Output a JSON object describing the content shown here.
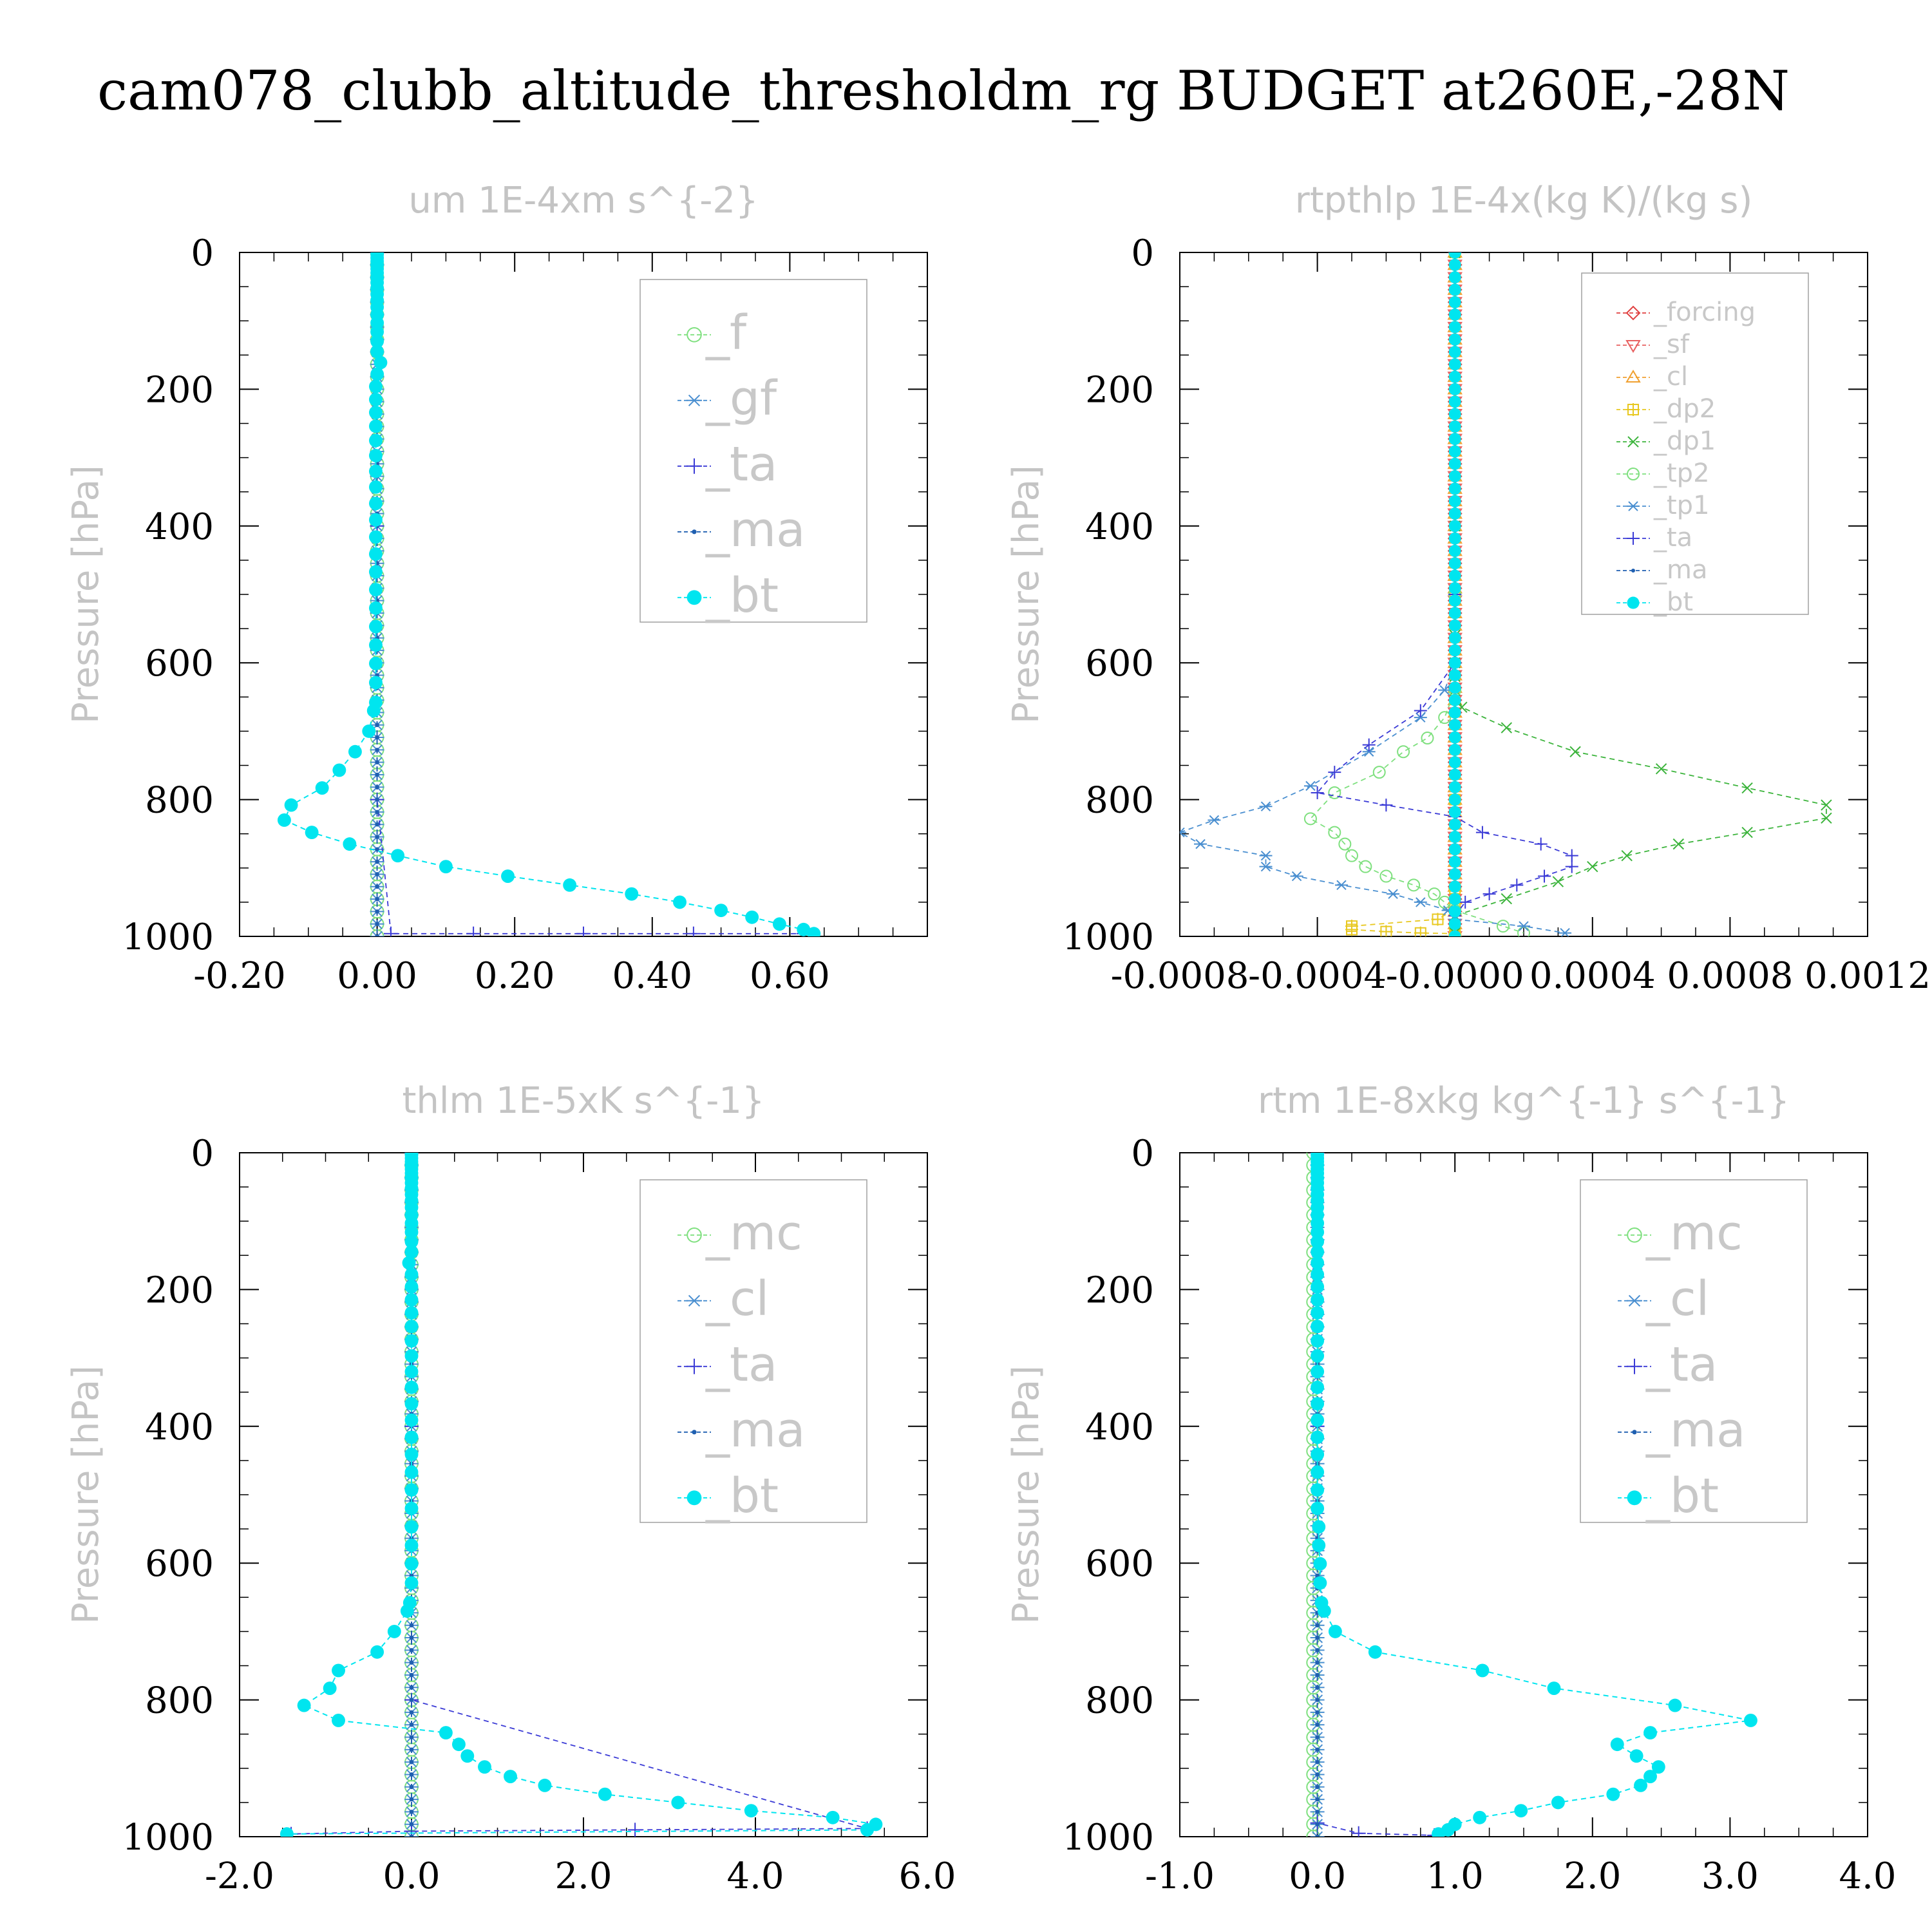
{
  "figure": {
    "title": "cam078_clubb_altitude_thresholdm_rg  BUDGET at260E,-28N"
  },
  "chart_data": [
    {
      "type": "line",
      "title": "um  1E-4xm s^{-2}",
      "ylabel": "Pressure [hPa]",
      "xlabel": "",
      "xlim": [
        -0.2,
        0.8
      ],
      "ylim": [
        1000,
        0
      ],
      "y_inverted": true,
      "xticks": [
        "-0.20",
        "0.00",
        "0.20",
        "0.40",
        "0.60"
      ],
      "xtick_values": [
        -0.2,
        0.0,
        0.2,
        0.4,
        0.6
      ],
      "yticks": [
        "0",
        "200",
        "400",
        "600",
        "800",
        "1000"
      ],
      "ytick_values": [
        0,
        200,
        400,
        600,
        800,
        1000
      ],
      "legend_position": "top-right",
      "legend_size": "large",
      "pressure_levels": [
        3,
        8,
        13,
        18,
        24,
        30,
        37,
        44,
        52,
        61,
        70,
        80,
        91,
        103,
        116,
        130,
        145,
        161,
        178,
        196,
        215,
        234,
        254,
        275,
        297,
        320,
        343,
        367,
        391,
        416,
        441,
        467,
        493,
        520,
        547,
        574,
        601,
        629,
        658,
        670,
        700,
        730,
        757,
        783,
        808,
        830,
        848,
        865,
        882,
        898,
        912,
        925,
        938,
        950,
        962,
        972,
        982,
        990,
        996
      ],
      "series": [
        {
          "name": "_f",
          "color": "#7fe07f",
          "marker": "circle-open",
          "values": {
            "kind": "constant",
            "value": 0.0
          }
        },
        {
          "name": "_gf",
          "color": "#4a8fd0",
          "marker": "asterisk",
          "values": {
            "kind": "constant",
            "value": 0.0
          }
        },
        {
          "name": "_ta",
          "color": "#3b3bd6",
          "marker": "plus",
          "values": {
            "kind": "points",
            "x": [
              0.0,
              0.0,
              0.0,
              0.02,
              0.14,
              0.3,
              0.46,
              0.62
            ],
            "y": [
              0,
              400,
              800,
              996,
              996,
              996,
              996,
              996
            ]
          }
        },
        {
          "name": "_ma",
          "color": "#1f5fb0",
          "marker": "dot",
          "values": {
            "kind": "constant",
            "value": 0.0
          }
        },
        {
          "name": "_bt",
          "color": "#00e5ef",
          "marker": "filled-circle",
          "values": {
            "kind": "profile",
            "x": [
              0.0,
              0.0,
              0.0,
              0.0,
              0.0,
              0.0,
              0.0,
              0.0,
              0.0,
              0.0,
              0.0,
              0.0,
              0.0,
              0.0,
              0.0,
              0.0,
              0.0,
              0.005,
              0.0,
              -0.002,
              -0.002,
              -0.002,
              -0.002,
              -0.002,
              -0.002,
              -0.002,
              -0.002,
              -0.002,
              -0.002,
              -0.002,
              -0.002,
              -0.002,
              -0.002,
              -0.002,
              -0.002,
              -0.002,
              -0.002,
              -0.002,
              -0.002,
              -0.005,
              -0.012,
              -0.032,
              -0.055,
              -0.08,
              -0.125,
              -0.135,
              -0.095,
              -0.04,
              0.03,
              0.1,
              0.19,
              0.28,
              0.37,
              0.44,
              0.5,
              0.545,
              0.585,
              0.62,
              0.635
            ],
            "y_ref": "pressure_levels"
          }
        }
      ]
    },
    {
      "type": "line",
      "title": "rtpthlp  1E-4x(kg K)/(kg s)",
      "ylabel": "Pressure [hPa]",
      "xlabel": "",
      "xlim": [
        -0.0008,
        0.0012
      ],
      "ylim": [
        1000,
        0
      ],
      "y_inverted": true,
      "xticks": [
        "-0.0008",
        "-0.0004",
        "-0.0000",
        "0.0004",
        "0.0008",
        "0.0012"
      ],
      "xtick_values": [
        -0.0008,
        -0.0004,
        0.0,
        0.0004,
        0.0008,
        0.0012
      ],
      "yticks": [
        "0",
        "200",
        "400",
        "600",
        "800",
        "1000"
      ],
      "ytick_values": [
        0,
        200,
        400,
        600,
        800,
        1000
      ],
      "legend_position": "top-right",
      "legend_size": "small",
      "series": [
        {
          "name": "_forcing",
          "color": "#e04040",
          "marker": "diamond-open",
          "values": {
            "kind": "constant",
            "value": 0.0
          }
        },
        {
          "name": "_sf",
          "color": "#e86060",
          "marker": "triangle-down",
          "values": {
            "kind": "constant",
            "value": 0.0
          }
        },
        {
          "name": "_cl",
          "color": "#f0a030",
          "marker": "triangle-up",
          "values": {
            "kind": "constant",
            "value": 0.0
          }
        },
        {
          "name": "_dp2",
          "color": "#e8c820",
          "marker": "square-plus",
          "values": {
            "kind": "points",
            "x": [
              0.0,
              0.0,
              0.0,
              0.0,
              0.0,
              -5e-05,
              -0.0003,
              -0.0003,
              -0.0002,
              -0.0001,
              0.0,
              0.0,
              0.0
            ],
            "y": [
              0,
              500,
              800,
              930,
              960,
              975,
              985,
              990,
              993,
              995,
              996,
              998,
              999
            ]
          }
        },
        {
          "name": "_dp1",
          "color": "#3cb43c",
          "marker": "cross",
          "values": {
            "kind": "points",
            "x": [
              0.0,
              0.0,
              0.0,
              0.0,
              0.0,
              0.0,
              0.0,
              2e-05,
              0.00015,
              0.00035,
              0.0006,
              0.00085,
              0.00108,
              0.00108,
              0.00085,
              0.00065,
              0.0005,
              0.0004,
              0.0003,
              0.00015,
              0.0,
              0.0
            ],
            "y": [
              0,
              400,
              500,
              560,
              600,
              620,
              640,
              665,
              695,
              730,
              755,
              783,
              808,
              827,
              848,
              865,
              882,
              898,
              920,
              945,
              970,
              995
            ]
          }
        },
        {
          "name": "_tp2",
          "color": "#7fe07f",
          "marker": "circle-open",
          "values": {
            "kind": "points",
            "x": [
              0.0,
              0.0,
              0.0,
              -3e-05,
              -8e-05,
              -0.00015,
              -0.00022,
              -0.00035,
              -0.00042,
              -0.00035,
              -0.00032,
              -0.0003,
              -0.00026,
              -0.0002,
              -0.00012,
              -6e-05,
              -3e-05,
              0.0,
              0.00014,
              0.0002
            ],
            "y": [
              0,
              500,
              640,
              680,
              710,
              730,
              760,
              790,
              828,
              848,
              865,
              882,
              898,
              912,
              925,
              938,
              950,
              962,
              985,
              995
            ]
          }
        },
        {
          "name": "_tp1",
          "color": "#4a8fd0",
          "marker": "asterisk",
          "values": {
            "kind": "points",
            "x": [
              0.0,
              0.0,
              0.0,
              -3e-05,
              -0.0001,
              -0.00025,
              -0.00042,
              -0.00055,
              -0.0007,
              -0.0008,
              -0.00074,
              -0.00055,
              -0.00055,
              -0.00046,
              -0.00033,
              -0.00018,
              -0.0001,
              -2e-05,
              0.0,
              0.0002,
              0.00032
            ],
            "y": [
              0,
              500,
              600,
              640,
              680,
              730,
              780,
              810,
              830,
              848,
              865,
              882,
              898,
              912,
              925,
              938,
              950,
              962,
              975,
              985,
              995
            ]
          }
        },
        {
          "name": "_ta",
          "color": "#3b3bd6",
          "marker": "plus",
          "values": {
            "kind": "points",
            "x": [
              0.0,
              0.0,
              0.0,
              -0.0001,
              -0.00025,
              -0.00035,
              -0.0004,
              -0.0002,
              0.0,
              8e-05,
              0.00025,
              0.00034,
              0.00034,
              0.00026,
              0.00018,
              0.0001,
              3e-05,
              0.0
            ],
            "y": [
              0,
              500,
              600,
              670,
              720,
              760,
              790,
              808,
              825,
              848,
              865,
              882,
              898,
              912,
              925,
              938,
              950,
              970
            ]
          }
        },
        {
          "name": "_ma",
          "color": "#1f5fb0",
          "marker": "dot",
          "values": {
            "kind": "constant",
            "value": 0.0
          }
        },
        {
          "name": "_bt",
          "color": "#00e5ef",
          "marker": "filled-circle",
          "values": {
            "kind": "constant",
            "value": 0.0
          }
        }
      ]
    },
    {
      "type": "line",
      "title": "thlm  1E-5xK s^{-1}",
      "ylabel": "Pressure [hPa]",
      "xlabel": "",
      "xlim": [
        -2.0,
        6.0
      ],
      "ylim": [
        1000,
        0
      ],
      "y_inverted": true,
      "xticks": [
        "-2.0",
        "0.0",
        "2.0",
        "4.0",
        "6.0"
      ],
      "xtick_values": [
        -2.0,
        0.0,
        2.0,
        4.0,
        6.0
      ],
      "yticks": [
        "0",
        "200",
        "400",
        "600",
        "800",
        "1000"
      ],
      "ytick_values": [
        0,
        200,
        400,
        600,
        800,
        1000
      ],
      "legend_position": "top-right",
      "legend_size": "large",
      "pressure_levels": [
        3,
        8,
        13,
        18,
        24,
        30,
        37,
        44,
        52,
        61,
        70,
        80,
        91,
        103,
        116,
        130,
        145,
        161,
        178,
        196,
        215,
        234,
        254,
        275,
        297,
        320,
        343,
        367,
        391,
        416,
        441,
        467,
        493,
        520,
        547,
        574,
        601,
        629,
        658,
        670,
        700,
        730,
        757,
        783,
        808,
        830,
        848,
        865,
        882,
        898,
        912,
        925,
        938,
        950,
        962,
        972,
        982,
        990,
        996
      ],
      "series": [
        {
          "name": "_mc",
          "color": "#7fe07f",
          "marker": "circle-open",
          "values": {
            "kind": "constant",
            "value": 0.0
          }
        },
        {
          "name": "_cl",
          "color": "#4a8fd0",
          "marker": "asterisk",
          "values": {
            "kind": "constant",
            "value": 0.0
          }
        },
        {
          "name": "_ta",
          "color": "#3b3bd6",
          "marker": "plus",
          "values": {
            "kind": "points",
            "x": [
              0.0,
              0.0,
              0.0,
              5.3,
              2.6,
              0.0,
              -1.4
            ],
            "y": [
              0,
              400,
              800,
              988,
              990,
              992,
              996
            ]
          }
        },
        {
          "name": "_ma",
          "color": "#1f5fb0",
          "marker": "dot",
          "values": {
            "kind": "constant",
            "value": 0.0
          }
        },
        {
          "name": "_bt",
          "color": "#00e5ef",
          "marker": "filled-circle",
          "values": {
            "kind": "profile",
            "x": [
              0.0,
              0.0,
              0.0,
              0.0,
              0.0,
              0.0,
              0.0,
              0.0,
              0.0,
              0.0,
              0.0,
              0.0,
              0.0,
              0.0,
              0.0,
              0.0,
              0.0,
              -0.03,
              0.0,
              0.0,
              0.0,
              0.0,
              0.0,
              0.0,
              0.0,
              0.0,
              0.0,
              0.0,
              0.0,
              0.0,
              0.0,
              0.0,
              0.0,
              0.0,
              0.0,
              0.0,
              0.0,
              0.0,
              -0.02,
              -0.05,
              -0.2,
              -0.4,
              -0.85,
              -0.95,
              -1.25,
              -0.85,
              0.4,
              0.55,
              0.65,
              0.85,
              1.15,
              1.55,
              2.25,
              3.1,
              3.95,
              4.9,
              5.4,
              5.3,
              -1.45
            ],
            "y_ref": "pressure_levels"
          }
        }
      ]
    },
    {
      "type": "line",
      "title": "rtm  1E-8xkg kg^{-1} s^{-1}",
      "ylabel": "Pressure [hPa]",
      "xlabel": "",
      "xlim": [
        -1.0,
        4.0
      ],
      "ylim": [
        1000,
        0
      ],
      "y_inverted": true,
      "xticks": [
        "-1.0",
        "0.0",
        "1.0",
        "2.0",
        "3.0",
        "4.0"
      ],
      "xtick_values": [
        -1.0,
        0.0,
        1.0,
        2.0,
        3.0,
        4.0
      ],
      "yticks": [
        "0",
        "200",
        "400",
        "600",
        "800",
        "1000"
      ],
      "ytick_values": [
        0,
        200,
        400,
        600,
        800,
        1000
      ],
      "legend_position": "top-right",
      "legend_size": "large",
      "pressure_levels": [
        3,
        8,
        13,
        18,
        24,
        30,
        37,
        44,
        52,
        61,
        70,
        80,
        91,
        103,
        116,
        130,
        145,
        161,
        178,
        196,
        215,
        234,
        254,
        275,
        297,
        320,
        343,
        367,
        391,
        416,
        441,
        467,
        493,
        520,
        547,
        574,
        601,
        629,
        658,
        670,
        700,
        730,
        757,
        783,
        808,
        830,
        848,
        865,
        882,
        898,
        912,
        925,
        938,
        950,
        962,
        972,
        982,
        990,
        996
      ],
      "series": [
        {
          "name": "_mc",
          "color": "#7fe07f",
          "marker": "circle-open",
          "values": {
            "kind": "constant",
            "value": -0.03
          }
        },
        {
          "name": "_cl",
          "color": "#4a8fd0",
          "marker": "asterisk",
          "values": {
            "kind": "constant",
            "value": 0.0
          }
        },
        {
          "name": "_ta",
          "color": "#3b3bd6",
          "marker": "plus",
          "values": {
            "kind": "points",
            "x": [
              0.0,
              0.0,
              0.0,
              0.3,
              0.85
            ],
            "y": [
              0,
              400,
              980,
              995,
              998
            ]
          }
        },
        {
          "name": "_ma",
          "color": "#1f5fb0",
          "marker": "dot",
          "values": {
            "kind": "constant",
            "value": 0.0
          }
        },
        {
          "name": "_bt",
          "color": "#00e5ef",
          "marker": "filled-circle",
          "values": {
            "kind": "profile",
            "x": [
              0.0,
              0.0,
              0.0,
              0.0,
              0.0,
              0.0,
              0.0,
              0.0,
              0.0,
              0.0,
              0.0,
              0.0,
              0.0,
              0.0,
              0.0,
              0.0,
              0.0,
              0.0,
              0.0,
              0.0,
              0.0,
              0.0,
              0.0,
              0.0,
              0.0,
              0.0,
              0.0,
              0.0,
              0.0,
              0.0,
              0.0,
              0.0,
              0.0,
              0.0,
              0.01,
              0.01,
              0.02,
              0.02,
              0.03,
              0.05,
              0.13,
              0.42,
              1.2,
              1.72,
              2.6,
              3.15,
              2.42,
              2.18,
              2.32,
              2.48,
              2.42,
              2.35,
              2.15,
              1.75,
              1.48,
              1.18,
              1.0,
              0.95,
              0.88
            ],
            "y_ref": "pressure_levels"
          }
        }
      ]
    }
  ]
}
